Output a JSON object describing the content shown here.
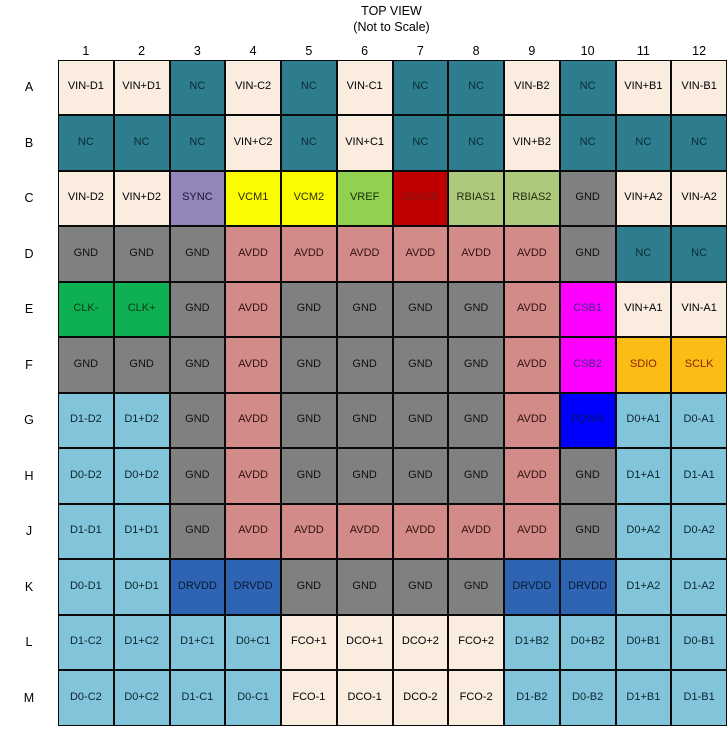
{
  "title": {
    "line1": "TOP VIEW",
    "line2": "(Not to Scale)"
  },
  "palette": {
    "cream": {
      "bg": "#FAECDF",
      "text": "#000000"
    },
    "teal": {
      "bg": "#2E7D8F",
      "text": "#062b33"
    },
    "gray": {
      "bg": "#808080",
      "text": "#101010"
    },
    "salmon": {
      "bg": "#D28B88",
      "text": "#301111"
    },
    "purple": {
      "bg": "#9384BA",
      "text": "#1d1333"
    },
    "yellow": {
      "bg": "#FCFC00",
      "text": "#2b2b00"
    },
    "green": {
      "bg": "#92D050",
      "text": "#0f2e08"
    },
    "red": {
      "bg": "#C00000",
      "text": "#821616"
    },
    "lightgreen": {
      "bg": "#ADC97C",
      "text": "#1d2a0d"
    },
    "brightgreen": {
      "bg": "#0DB053",
      "text": "#143613"
    },
    "magenta": {
      "bg": "#FF00FF",
      "text": "#3D2B8C"
    },
    "amber": {
      "bg": "#FBBC15",
      "text": "#8B2500"
    },
    "blue": {
      "bg": "#0000FF",
      "text": "#001166"
    },
    "darkblue": {
      "bg": "#2E64B2",
      "text": "#091a33"
    },
    "lightblue": {
      "bg": "#82C5DA",
      "text": "#0c2430"
    }
  },
  "grid": {
    "column_headers": [
      "1",
      "2",
      "3",
      "4",
      "5",
      "6",
      "7",
      "8",
      "9",
      "10",
      "11",
      "12"
    ],
    "row_headers": [
      "A",
      "B",
      "C",
      "D",
      "E",
      "F",
      "G",
      "H",
      "J",
      "K",
      "L",
      "M"
    ],
    "rows": [
      [
        [
          "VIN-D1",
          "cream"
        ],
        [
          "VIN+D1",
          "cream"
        ],
        [
          "NC",
          "teal"
        ],
        [
          "VIN-C2",
          "cream"
        ],
        [
          "NC",
          "teal"
        ],
        [
          "VIN-C1",
          "cream"
        ],
        [
          "NC",
          "teal"
        ],
        [
          "NC",
          "teal"
        ],
        [
          "VIN-B2",
          "cream"
        ],
        [
          "NC",
          "teal"
        ],
        [
          "VIN+B1",
          "cream"
        ],
        [
          "VIN-B1",
          "cream"
        ]
      ],
      [
        [
          "NC",
          "teal"
        ],
        [
          "NC",
          "teal"
        ],
        [
          "NC",
          "teal"
        ],
        [
          "VIN+C2",
          "cream"
        ],
        [
          "NC",
          "teal"
        ],
        [
          "VIN+C1",
          "cream"
        ],
        [
          "NC",
          "teal"
        ],
        [
          "NC",
          "teal"
        ],
        [
          "VIN+B2",
          "cream"
        ],
        [
          "NC",
          "teal"
        ],
        [
          "NC",
          "teal"
        ],
        [
          "NC",
          "teal"
        ]
      ],
      [
        [
          "VIN-D2",
          "cream"
        ],
        [
          "VIN+D2",
          "cream"
        ],
        [
          "SYNC",
          "purple"
        ],
        [
          "VCM1",
          "yellow"
        ],
        [
          "VCM2",
          "yellow"
        ],
        [
          "VREF",
          "green"
        ],
        [
          "SENSE",
          "red"
        ],
        [
          "RBIAS1",
          "lightgreen"
        ],
        [
          "RBIAS2",
          "lightgreen"
        ],
        [
          "GND",
          "gray"
        ],
        [
          "VIN+A2",
          "cream"
        ],
        [
          "VIN-A2",
          "cream"
        ]
      ],
      [
        [
          "GND",
          "gray"
        ],
        [
          "GND",
          "gray"
        ],
        [
          "GND",
          "gray"
        ],
        [
          "AVDD",
          "salmon"
        ],
        [
          "AVDD",
          "salmon"
        ],
        [
          "AVDD",
          "salmon"
        ],
        [
          "AVDD",
          "salmon"
        ],
        [
          "AVDD",
          "salmon"
        ],
        [
          "AVDD",
          "salmon"
        ],
        [
          "GND",
          "gray"
        ],
        [
          "NC",
          "teal"
        ],
        [
          "NC",
          "teal"
        ]
      ],
      [
        [
          "CLK-",
          "brightgreen"
        ],
        [
          "CLK+",
          "brightgreen"
        ],
        [
          "GND",
          "gray"
        ],
        [
          "AVDD",
          "salmon"
        ],
        [
          "GND",
          "gray"
        ],
        [
          "GND",
          "gray"
        ],
        [
          "GND",
          "gray"
        ],
        [
          "GND",
          "gray"
        ],
        [
          "AVDD",
          "salmon"
        ],
        [
          "CSB1",
          "magenta"
        ],
        [
          "VIN+A1",
          "cream"
        ],
        [
          "VIN-A1",
          "cream"
        ]
      ],
      [
        [
          "GND",
          "gray"
        ],
        [
          "GND",
          "gray"
        ],
        [
          "GND",
          "gray"
        ],
        [
          "AVDD",
          "salmon"
        ],
        [
          "GND",
          "gray"
        ],
        [
          "GND",
          "gray"
        ],
        [
          "GND",
          "gray"
        ],
        [
          "GND",
          "gray"
        ],
        [
          "AVDD",
          "salmon"
        ],
        [
          "CSB2",
          "magenta"
        ],
        [
          "SDIO",
          "amber"
        ],
        [
          "SCLK",
          "amber"
        ]
      ],
      [
        [
          "D1-D2",
          "lightblue"
        ],
        [
          "D1+D2",
          "lightblue"
        ],
        [
          "GND",
          "gray"
        ],
        [
          "AVDD",
          "salmon"
        ],
        [
          "GND",
          "gray"
        ],
        [
          "GND",
          "gray"
        ],
        [
          "GND",
          "gray"
        ],
        [
          "GND",
          "gray"
        ],
        [
          "AVDD",
          "salmon"
        ],
        [
          "PDWN",
          "blue"
        ],
        [
          "D0+A1",
          "lightblue"
        ],
        [
          "D0-A1",
          "lightblue"
        ]
      ],
      [
        [
          "D0-D2",
          "lightblue"
        ],
        [
          "D0+D2",
          "lightblue"
        ],
        [
          "GND",
          "gray"
        ],
        [
          "AVDD",
          "salmon"
        ],
        [
          "GND",
          "gray"
        ],
        [
          "GND",
          "gray"
        ],
        [
          "GND",
          "gray"
        ],
        [
          "GND",
          "gray"
        ],
        [
          "AVDD",
          "salmon"
        ],
        [
          "GND",
          "gray"
        ],
        [
          "D1+A1",
          "lightblue"
        ],
        [
          "D1-A1",
          "lightblue"
        ]
      ],
      [
        [
          "D1-D1",
          "lightblue"
        ],
        [
          "D1+D1",
          "lightblue"
        ],
        [
          "GND",
          "gray"
        ],
        [
          "AVDD",
          "salmon"
        ],
        [
          "AVDD",
          "salmon"
        ],
        [
          "AVDD",
          "salmon"
        ],
        [
          "AVDD",
          "salmon"
        ],
        [
          "AVDD",
          "salmon"
        ],
        [
          "AVDD",
          "salmon"
        ],
        [
          "GND",
          "gray"
        ],
        [
          "D0+A2",
          "lightblue"
        ],
        [
          "D0-A2",
          "lightblue"
        ]
      ],
      [
        [
          "D0-D1",
          "lightblue"
        ],
        [
          "D0+D1",
          "lightblue"
        ],
        [
          "DRVDD",
          "darkblue"
        ],
        [
          "DRVDD",
          "darkblue"
        ],
        [
          "GND",
          "gray"
        ],
        [
          "GND",
          "gray"
        ],
        [
          "GND",
          "gray"
        ],
        [
          "GND",
          "gray"
        ],
        [
          "DRVDD",
          "darkblue"
        ],
        [
          "DRVDD",
          "darkblue"
        ],
        [
          "D1+A2",
          "lightblue"
        ],
        [
          "D1-A2",
          "lightblue"
        ]
      ],
      [
        [
          "D1-C2",
          "lightblue"
        ],
        [
          "D1+C2",
          "lightblue"
        ],
        [
          "D1+C1",
          "lightblue"
        ],
        [
          "D0+C1",
          "lightblue"
        ],
        [
          "FCO+1",
          "cream"
        ],
        [
          "DCO+1",
          "cream"
        ],
        [
          "DCO+2",
          "cream"
        ],
        [
          "FCO+2",
          "cream"
        ],
        [
          "D1+B2",
          "lightblue"
        ],
        [
          "D0+B2",
          "lightblue"
        ],
        [
          "D0+B1",
          "lightblue"
        ],
        [
          "D0-B1",
          "lightblue"
        ]
      ],
      [
        [
          "D0-C2",
          "lightblue"
        ],
        [
          "D0+C2",
          "lightblue"
        ],
        [
          "D1-C1",
          "lightblue"
        ],
        [
          "D0-C1",
          "lightblue"
        ],
        [
          "FCO-1",
          "cream"
        ],
        [
          "DCO-1",
          "cream"
        ],
        [
          "DCO-2",
          "cream"
        ],
        [
          "FCO-2",
          "cream"
        ],
        [
          "D1-B2",
          "lightblue"
        ],
        [
          "D0-B2",
          "lightblue"
        ],
        [
          "D1+B1",
          "lightblue"
        ],
        [
          "D1-B1",
          "lightblue"
        ]
      ]
    ]
  }
}
